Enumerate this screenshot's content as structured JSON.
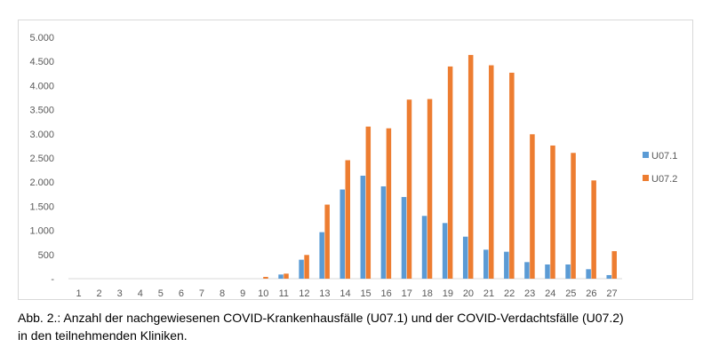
{
  "chart_data": {
    "type": "bar",
    "title": "",
    "xlabel": "",
    "ylabel": "",
    "ylim": [
      0,
      5000
    ],
    "yticks": [
      0,
      500,
      1000,
      1500,
      2000,
      2500,
      3000,
      3500,
      4000,
      4500,
      5000
    ],
    "ytick_labels": [
      "-",
      "500",
      "1.000",
      "1.500",
      "2.000",
      "2.500",
      "3.000",
      "3.500",
      "4.000",
      "4.500",
      "5.000"
    ],
    "categories": [
      "1",
      "2",
      "3",
      "4",
      "5",
      "6",
      "7",
      "8",
      "9",
      "10",
      "11",
      "12",
      "13",
      "14",
      "15",
      "16",
      "17",
      "18",
      "19",
      "20",
      "21",
      "22",
      "23",
      "24",
      "25",
      "26",
      "27"
    ],
    "series": [
      {
        "name": "U07.1",
        "color": "#5b9bd5",
        "values": [
          0,
          0,
          0,
          0,
          0,
          0,
          0,
          0,
          0,
          0,
          86,
          393,
          963,
          1847,
          2133,
          1912,
          1692,
          1300,
          1152,
          870,
          600,
          558,
          343,
          294,
          294,
          196,
          74
        ]
      },
      {
        "name": "U07.2",
        "color": "#ed7d31",
        "values": [
          0,
          0,
          0,
          0,
          0,
          0,
          0,
          0,
          0,
          37,
          104,
          491,
          1534,
          2454,
          3150,
          3114,
          3709,
          3721,
          4395,
          4634,
          4420,
          4266,
          2991,
          2758,
          2605,
          2035,
          570
        ]
      }
    ],
    "legend_position": "right",
    "grid": false
  },
  "caption": {
    "line1": "Abb. 2.: Anzahl der nachgewiesenen COVID-Krankenhausfälle (U07.1) und der COVID-Verdachtsfälle (U07.2)",
    "line2": "in den teilnehmenden Kliniken."
  }
}
